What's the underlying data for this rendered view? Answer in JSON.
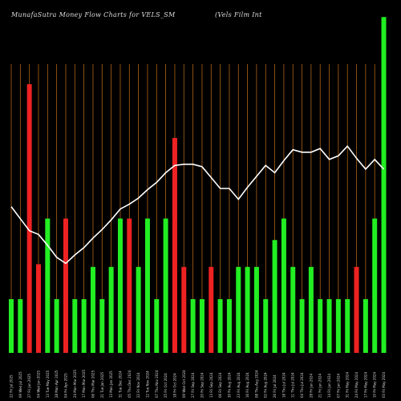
{
  "header": {
    "title": "MunafaSutra  Money Flow  Charts for VELS_SM",
    "subtitle": "(Vels Film Int"
  },
  "chart_data": {
    "type": "bar",
    "title": "MunafaSutra  Money Flow  Charts for VELS_SM",
    "subtitle": "(Vels Film Int",
    "xlabel": "",
    "ylabel": "",
    "grid": "vertical",
    "colors": {
      "up": "#22ee22",
      "down": "#ee2222",
      "line": "#ffffff",
      "grid": "#b06418",
      "background": "#000000"
    },
    "categories": [
      "22 Fri Jul 2025",
      "09 Wed Jul 2025",
      "27 Fri Jun 2025",
      "04 Wed Jun 2025",
      "13 Tue May 2025",
      "28 Mon Apr 2025",
      "04 Fri Apr 2025",
      "24 Mon Mar 2025",
      "17 Mon Mar 2025",
      "06 Thu Mar 2025",
      "21 Tue Jan 2025",
      "13 Mon Jan 2025",
      "31 Tue Dec 2024",
      "05 Thu Dec 2024",
      "22 Fri Nov 2024",
      "12 Tue Nov 2024",
      "07 Thu Nov 2024",
      "25 Fri Oct 2024",
      "18 Fri Oct 2024",
      "09 Wed Oct 2024",
      "27 Fri Sep 2024",
      "20 Fri Sep 2024",
      "13 Fri Sep 2024",
      "06 Fri Sep 2024",
      "30 Fri Aug 2024",
      "23 Fri Aug 2024",
      "16 Fri Aug 2024",
      "08 Thu Aug 2024",
      "02 Fri Aug 2024",
      "26 Fri Jul 2024",
      "18 Thu Jul 2024",
      "11 Thu Jul 2024",
      "04 Thu Jul 2024",
      "28 Fri Jun 2024",
      "21 Fri Jun 2024",
      "14 Fri Jun 2024",
      "07 Fri Jun 2024",
      "31 Fri May 2024",
      "24 Fri May 2024",
      "17 Fri May 2024",
      "10 Fri May 2024",
      "03 Fri May 2024"
    ],
    "bar_values": [
      2,
      2,
      10,
      3.3,
      5,
      2,
      5,
      2,
      2,
      3.2,
      2,
      3.2,
      5,
      5,
      3.2,
      5,
      2,
      5,
      8,
      3.2,
      2,
      2,
      3.2,
      2,
      2,
      3.2,
      3.2,
      3.2,
      2,
      4.2,
      5,
      3.2,
      2,
      3.2,
      2,
      2,
      2,
      2,
      3.2,
      2,
      5,
      12.5
    ],
    "bar_colors": [
      "g",
      "g",
      "r",
      "r",
      "g",
      "g",
      "r",
      "g",
      "g",
      "g",
      "g",
      "g",
      "g",
      "r",
      "g",
      "g",
      "g",
      "g",
      "r",
      "r",
      "g",
      "g",
      "r",
      "g",
      "g",
      "g",
      "g",
      "g",
      "g",
      "g",
      "g",
      "g",
      "g",
      "g",
      "g",
      "g",
      "g",
      "g",
      "r",
      "g",
      "g",
      "g"
    ],
    "line_values": [
      6.05,
      5.55,
      5.05,
      4.9,
      4.45,
      3.95,
      3.7,
      4.05,
      4.35,
      4.75,
      5.1,
      5.5,
      5.95,
      6.15,
      6.4,
      6.75,
      7.05,
      7.45,
      7.75,
      7.8,
      7.8,
      7.7,
      7.25,
      6.8,
      6.8,
      6.35,
      6.85,
      7.3,
      7.75,
      7.45,
      7.95,
      8.4,
      8.3,
      8.3,
      8.45,
      8.0,
      8.15,
      8.55,
      8.05,
      7.6,
      8.0,
      7.6
    ],
    "ylim": [
      0,
      10
    ],
    "x_reversed": true
  }
}
